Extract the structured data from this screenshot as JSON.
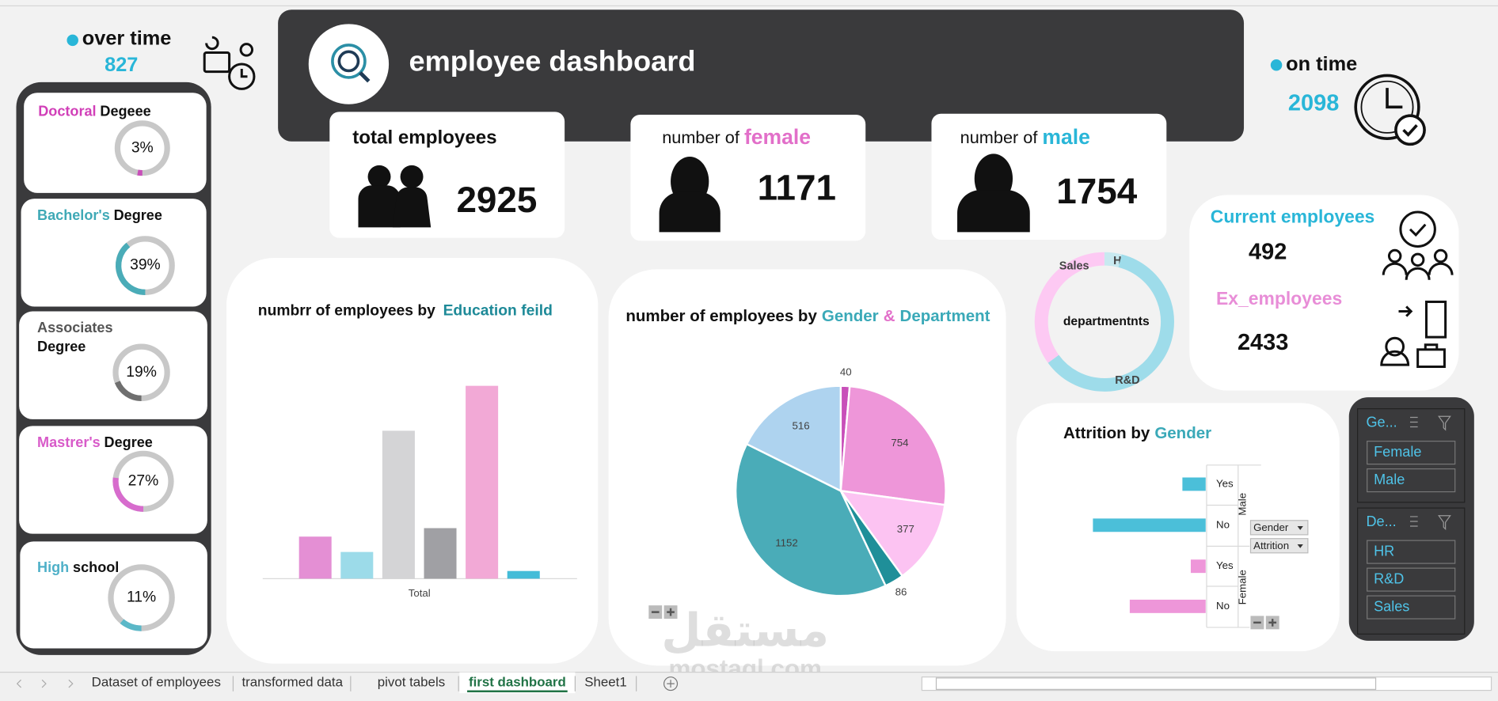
{
  "overtime": {
    "label": "over time",
    "value": 827
  },
  "ontime": {
    "label": "on time",
    "value": 2098
  },
  "header": {
    "title": "employee dashboard"
  },
  "kpis": [
    {
      "label": "total employees",
      "value": 2925
    },
    {
      "label": "number of",
      "highlight": "female",
      "value": 1171
    },
    {
      "label": "number of",
      "highlight": "male",
      "value": 1754
    }
  ],
  "degrees": [
    {
      "highlight": "Doctoral",
      "label": "Degeee",
      "value": 3,
      "value_label": "3%",
      "color": "#c84fb9",
      "highlight_color": "#d13fb8"
    },
    {
      "highlight": "Bachelor's",
      "label": "Degree",
      "value": 39,
      "value_label": "39%",
      "color": "#4aacb8",
      "highlight_color": "#3fa9b6"
    },
    {
      "highlight": "Associates",
      "label": "Degree",
      "value": 19,
      "value_label": "19%",
      "color": "#6f6f6f",
      "highlight_color": "#555555"
    },
    {
      "highlight": "Mastrer's",
      "label": "Degree",
      "value": 27,
      "value_label": "27%",
      "color": "#d76ccd",
      "highlight_color": "#d85bc9"
    },
    {
      "highlight": "High",
      "label": "school",
      "value": 11,
      "value_label": "11%",
      "color": "#5bb8c8",
      "highlight_color": "#4fb0c8"
    }
  ],
  "employees": {
    "current_label": "Current employees",
    "current": 492,
    "ex_label": "Ex_employees",
    "ex": 2433
  },
  "chart_data": [
    {
      "type": "bar",
      "title": "numbrr of employees by",
      "title_highlight": "Education feild",
      "categories": [
        "Total"
      ],
      "series": [
        {
          "color": "#e48fd4",
          "values": [
            263
          ]
        },
        {
          "color": "#9cdbe9",
          "values": [
            167
          ]
        },
        {
          "color": "#d4d4d6",
          "values": [
            925
          ]
        },
        {
          "color": "#a0a0a4",
          "values": [
            316
          ]
        },
        {
          "color": "#f2a9d6",
          "values": [
            1206
          ]
        },
        {
          "color": "#44bcd8",
          "values": [
            48
          ]
        }
      ]
    },
    {
      "type": "pie",
      "title": "number of employees by",
      "title_highlights": [
        "Gender",
        "&",
        "Department"
      ],
      "values": [
        40,
        754,
        377,
        86,
        1152,
        516
      ],
      "colors": [
        "#c84fb9",
        "#ee96d9",
        "#fcc3f2",
        "#1f8f99",
        "#4aacb8",
        "#aed3ef"
      ]
    },
    {
      "type": "donut",
      "center_label": "departmentnts",
      "categories": [
        "HR",
        "R&D",
        "Sales"
      ],
      "values": [
        4,
        61,
        35
      ],
      "colors": [
        "#c8e9f0",
        "#9edcea",
        "#fdc9f3"
      ]
    },
    {
      "type": "hbar",
      "title": "Attrition by",
      "title_highlight": "Gender",
      "fields": [
        "Gender",
        "Attrition"
      ],
      "groups": [
        {
          "name": "Male",
          "color": "#4bbfd9",
          "categories": [
            "Yes",
            "No"
          ],
          "values": [
            300,
            1454
          ]
        },
        {
          "name": "Female",
          "color": "#ee96d9",
          "categories": [
            "Yes",
            "No"
          ],
          "values": [
            192,
            979
          ]
        }
      ]
    }
  ],
  "slicers": [
    {
      "title": "Ge...",
      "items": [
        "Female",
        "Male"
      ]
    },
    {
      "title": "De...",
      "items": [
        "HR",
        "R&D",
        "Sales"
      ]
    }
  ],
  "tabs": [
    "Dataset of employees",
    "transformed data",
    "pivot tabels",
    "first dashboard",
    "Sheet1"
  ],
  "watermark": [
    "مستقل",
    "mostaql.com"
  ]
}
